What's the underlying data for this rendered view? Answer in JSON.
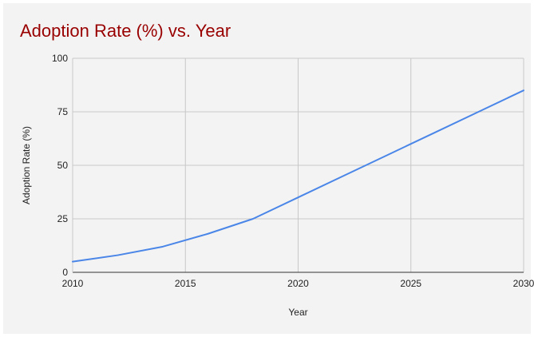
{
  "chart_data": {
    "type": "line",
    "title": "Adoption Rate (%) vs. Year",
    "xlabel": "Year",
    "ylabel": "Adoption Rate (%)",
    "xlim": [
      2010,
      2030
    ],
    "ylim": [
      0,
      100
    ],
    "x_ticks": [
      2010,
      2015,
      2020,
      2025,
      2030
    ],
    "y_ticks": [
      0,
      25,
      50,
      75,
      100
    ],
    "grid": true,
    "legend": "none",
    "series": [
      {
        "color": "#4a86e8",
        "x": [
          2010,
          2012,
          2014,
          2016,
          2018,
          2020,
          2022,
          2024,
          2026,
          2028,
          2030
        ],
        "y": [
          5,
          8,
          12,
          18,
          25,
          35,
          45,
          55,
          65,
          75,
          85
        ]
      }
    ]
  }
}
